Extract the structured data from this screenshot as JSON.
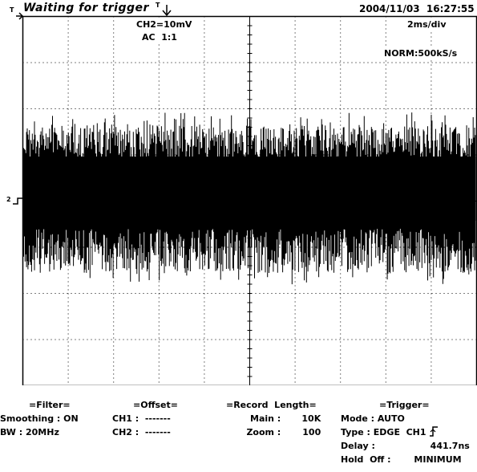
{
  "header": {
    "status_marker": "T",
    "status": "Waiting for trigger",
    "trigger_marker": "T",
    "datetime": "2004/11/03  16:27:55"
  },
  "screen_params": {
    "ch2_scale": "CH2=10mV",
    "coupling": "AC  1:1",
    "timebase": "2ms/div",
    "sample_rate": "NORM:500kS/s",
    "channel_marker": "2"
  },
  "panel": {
    "filter": {
      "title": "=Filter=",
      "smoothing_label": "Smoothing",
      "smoothing_value": "ON",
      "bw_label": "BW",
      "bw_value": "20MHz"
    },
    "offset": {
      "title": "=Offset=",
      "ch1_label": "CH1",
      "ch1_value": "-------",
      "ch2_label": "CH2",
      "ch2_value": "-------"
    },
    "record": {
      "title": "=Record  Length=",
      "main_label": "Main",
      "main_value": "10K",
      "zoom_label": "Zoom",
      "zoom_value": "100"
    },
    "trigger": {
      "title": "=Trigger=",
      "mode_label": "Mode",
      "mode_value": "AUTO",
      "type_label": "Type",
      "type_value": "EDGE  CH1",
      "edge_icon": "rising-edge-icon",
      "delay_label": "Delay",
      "delay_value": "441.7ns",
      "holdoff_label": "Hold  Off",
      "holdoff_value": "MINIMUM"
    }
  }
}
